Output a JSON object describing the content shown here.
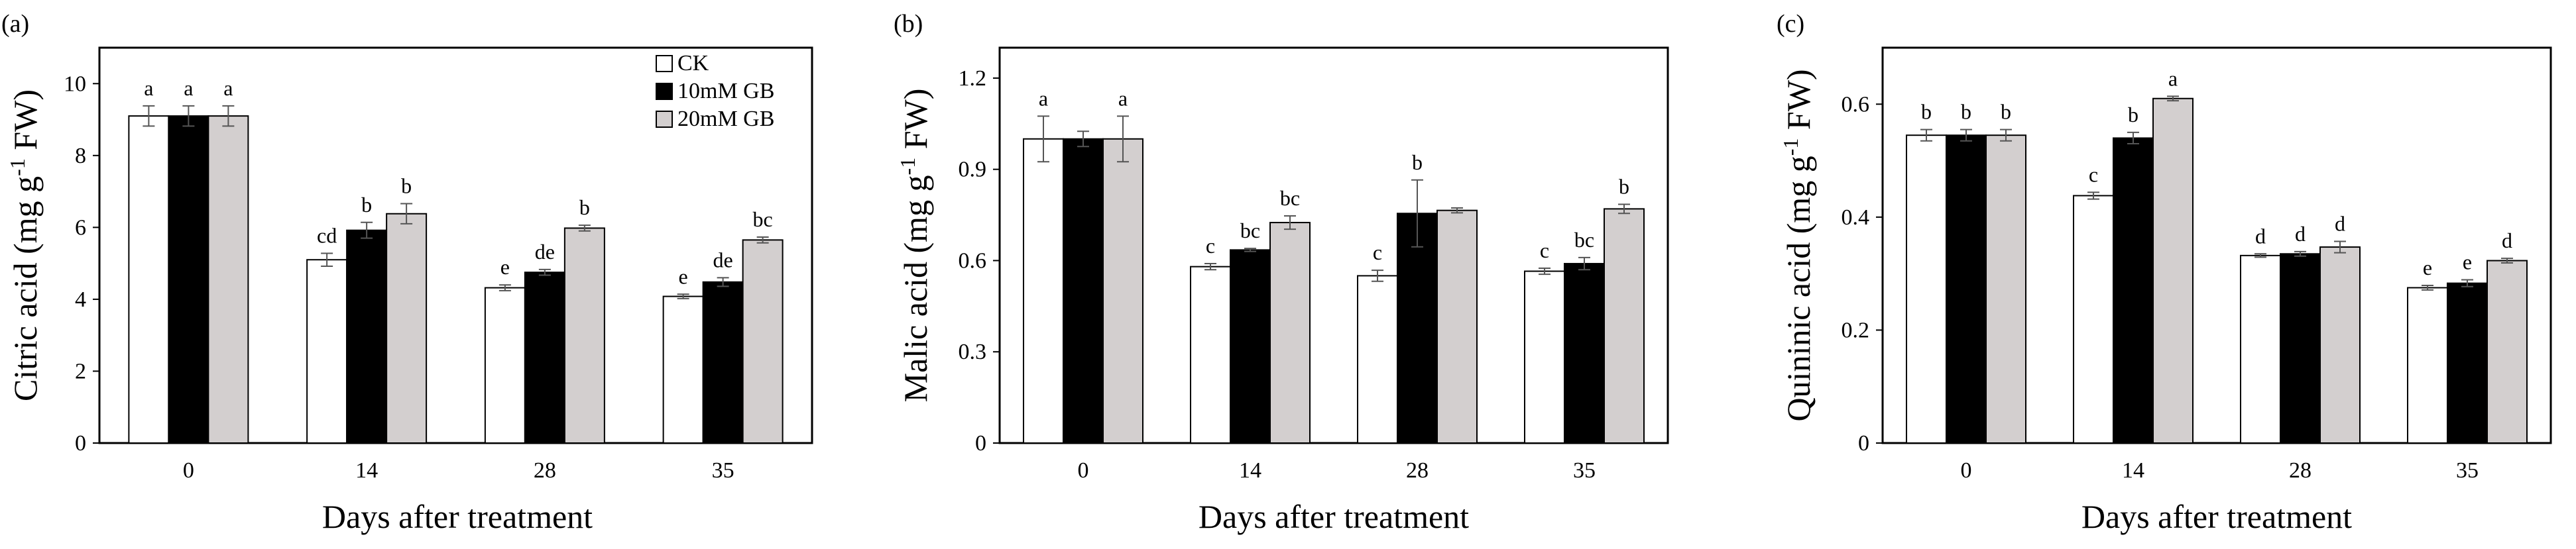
{
  "chart_data": [
    {
      "type": "bar",
      "panel_label": "(a)",
      "title": "",
      "xlabel": "Days after treatment",
      "ylabel_main": "Citric acid (mg g",
      "ylabel_sup": "-1",
      "ylabel_tail": " FW)",
      "categories": [
        "0",
        "14",
        "28",
        "35"
      ],
      "ylim": [
        0,
        11
      ],
      "yticks": [
        0,
        2,
        4,
        6,
        8,
        10
      ],
      "ytick_labels": [
        "0",
        "2",
        "4",
        "6",
        "8",
        "10"
      ],
      "show_legend": true,
      "series": [
        {
          "name": "CK",
          "values": [
            9.1,
            5.1,
            4.32,
            4.08
          ],
          "errors": [
            0.28,
            0.18,
            0.08,
            0.06
          ],
          "letters": [
            "a",
            "cd",
            "e",
            "e"
          ]
        },
        {
          "name": "10mM GB",
          "values": [
            9.1,
            5.92,
            4.75,
            4.48
          ],
          "errors": [
            0.28,
            0.22,
            0.08,
            0.12
          ],
          "letters": [
            "a",
            "b",
            "de",
            "de"
          ]
        },
        {
          "name": "20mM GB",
          "values": [
            9.1,
            6.38,
            5.98,
            5.65
          ],
          "errors": [
            0.28,
            0.28,
            0.08,
            0.08
          ],
          "letters": [
            "a",
            "b",
            "b",
            "bc"
          ]
        }
      ]
    },
    {
      "type": "bar",
      "panel_label": "(b)",
      "title": "",
      "xlabel": "Days after treatment",
      "ylabel_main": "Malic acid (mg g",
      "ylabel_sup": "-1",
      "ylabel_tail": " FW)",
      "categories": [
        "0",
        "14",
        "28",
        "35"
      ],
      "ylim": [
        0,
        1.3
      ],
      "yticks": [
        0,
        0.3,
        0.6,
        0.9,
        1.2
      ],
      "ytick_labels": [
        "0",
        "0.3",
        "0.6",
        "0.9",
        "1.2"
      ],
      "show_legend": false,
      "series": [
        {
          "name": "CK",
          "values": [
            1.0,
            0.58,
            0.55,
            0.565
          ],
          "errors": [
            0.075,
            0.01,
            0.018,
            0.01
          ],
          "letters": [
            "a",
            "c",
            "c",
            "c"
          ]
        },
        {
          "name": "10mM GB",
          "values": [
            1.0,
            0.635,
            0.755,
            0.59
          ],
          "errors": [
            0.025,
            0.005,
            0.11,
            0.02
          ],
          "letters": [
            "",
            "bc",
            "b",
            "bc"
          ]
        },
        {
          "name": "20mM GB",
          "values": [
            1.0,
            0.725,
            0.765,
            0.77
          ],
          "errors": [
            0.075,
            0.022,
            0.008,
            0.015
          ],
          "letters": [
            "a",
            "bc",
            "",
            "b"
          ]
        }
      ]
    },
    {
      "type": "bar",
      "panel_label": "(c)",
      "title": "",
      "xlabel": "Days after treatment",
      "ylabel_main": "Quininic acid (mg g",
      "ylabel_sup": "-1",
      "ylabel_tail": " FW)",
      "categories": [
        "0",
        "14",
        "28",
        "35"
      ],
      "ylim": [
        0,
        0.7
      ],
      "yticks": [
        0,
        0.2,
        0.4,
        0.6
      ],
      "ytick_labels": [
        "0",
        "0.2",
        "0.4",
        "0.6"
      ],
      "show_legend": false,
      "series": [
        {
          "name": "CK",
          "values": [
            0.545,
            0.438,
            0.332,
            0.275
          ],
          "errors": [
            0.01,
            0.006,
            0.003,
            0.004
          ],
          "letters": [
            "b",
            "c",
            "d",
            "e"
          ]
        },
        {
          "name": "10mM GB",
          "values": [
            0.545,
            0.54,
            0.335,
            0.283
          ],
          "errors": [
            0.01,
            0.01,
            0.004,
            0.006
          ],
          "letters": [
            "b",
            "b",
            "d",
            "e"
          ]
        },
        {
          "name": "20mM GB",
          "values": [
            0.545,
            0.61,
            0.347,
            0.323
          ],
          "errors": [
            0.01,
            0.004,
            0.01,
            0.004
          ],
          "letters": [
            "b",
            "a",
            "d",
            "d"
          ]
        }
      ]
    }
  ],
  "colors": {
    "CK": "#ffffff",
    "10mM GB": "#000000",
    "20mM GB": "#d3cfcf",
    "stroke": "#000000",
    "error_bar": "#555555"
  }
}
